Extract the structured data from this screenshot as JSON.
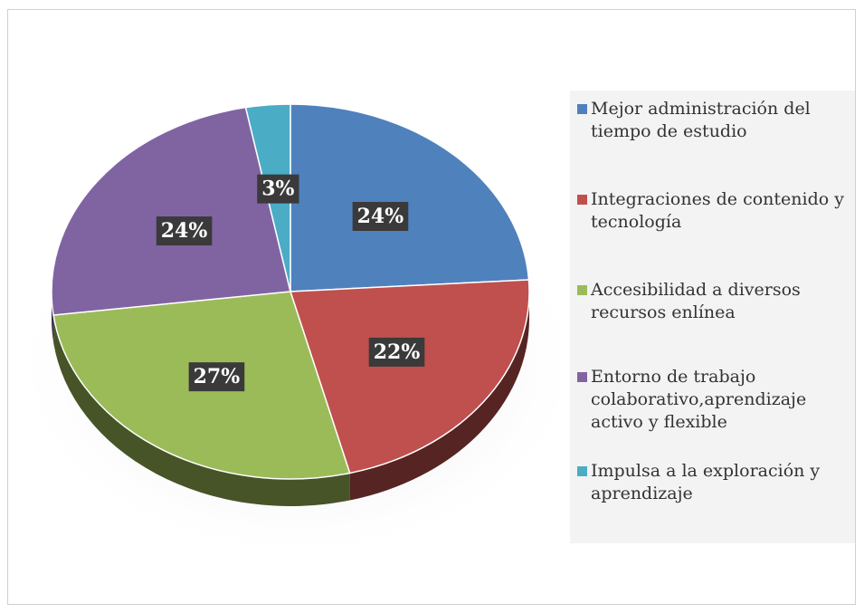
{
  "chart_data": {
    "type": "pie",
    "categories": [
      "Mejor administración del tiempo de estudio",
      "Integraciones de contenido y tecnología",
      "Accesibilidad a diversos recursos enlínea",
      "Entorno de trabajo colaborativo,aprendizaje activo y flexible",
      "Impulsa a la exploración y aprendizaje"
    ],
    "values": [
      24,
      22,
      27,
      24,
      3
    ],
    "value_labels": [
      "24%",
      "22%",
      "27%",
      "24%",
      "3%"
    ],
    "colors": [
      "#4f81bd",
      "#c0504d",
      "#9bbb59",
      "#8064a2",
      "#4bacc6"
    ],
    "legend": "right"
  }
}
